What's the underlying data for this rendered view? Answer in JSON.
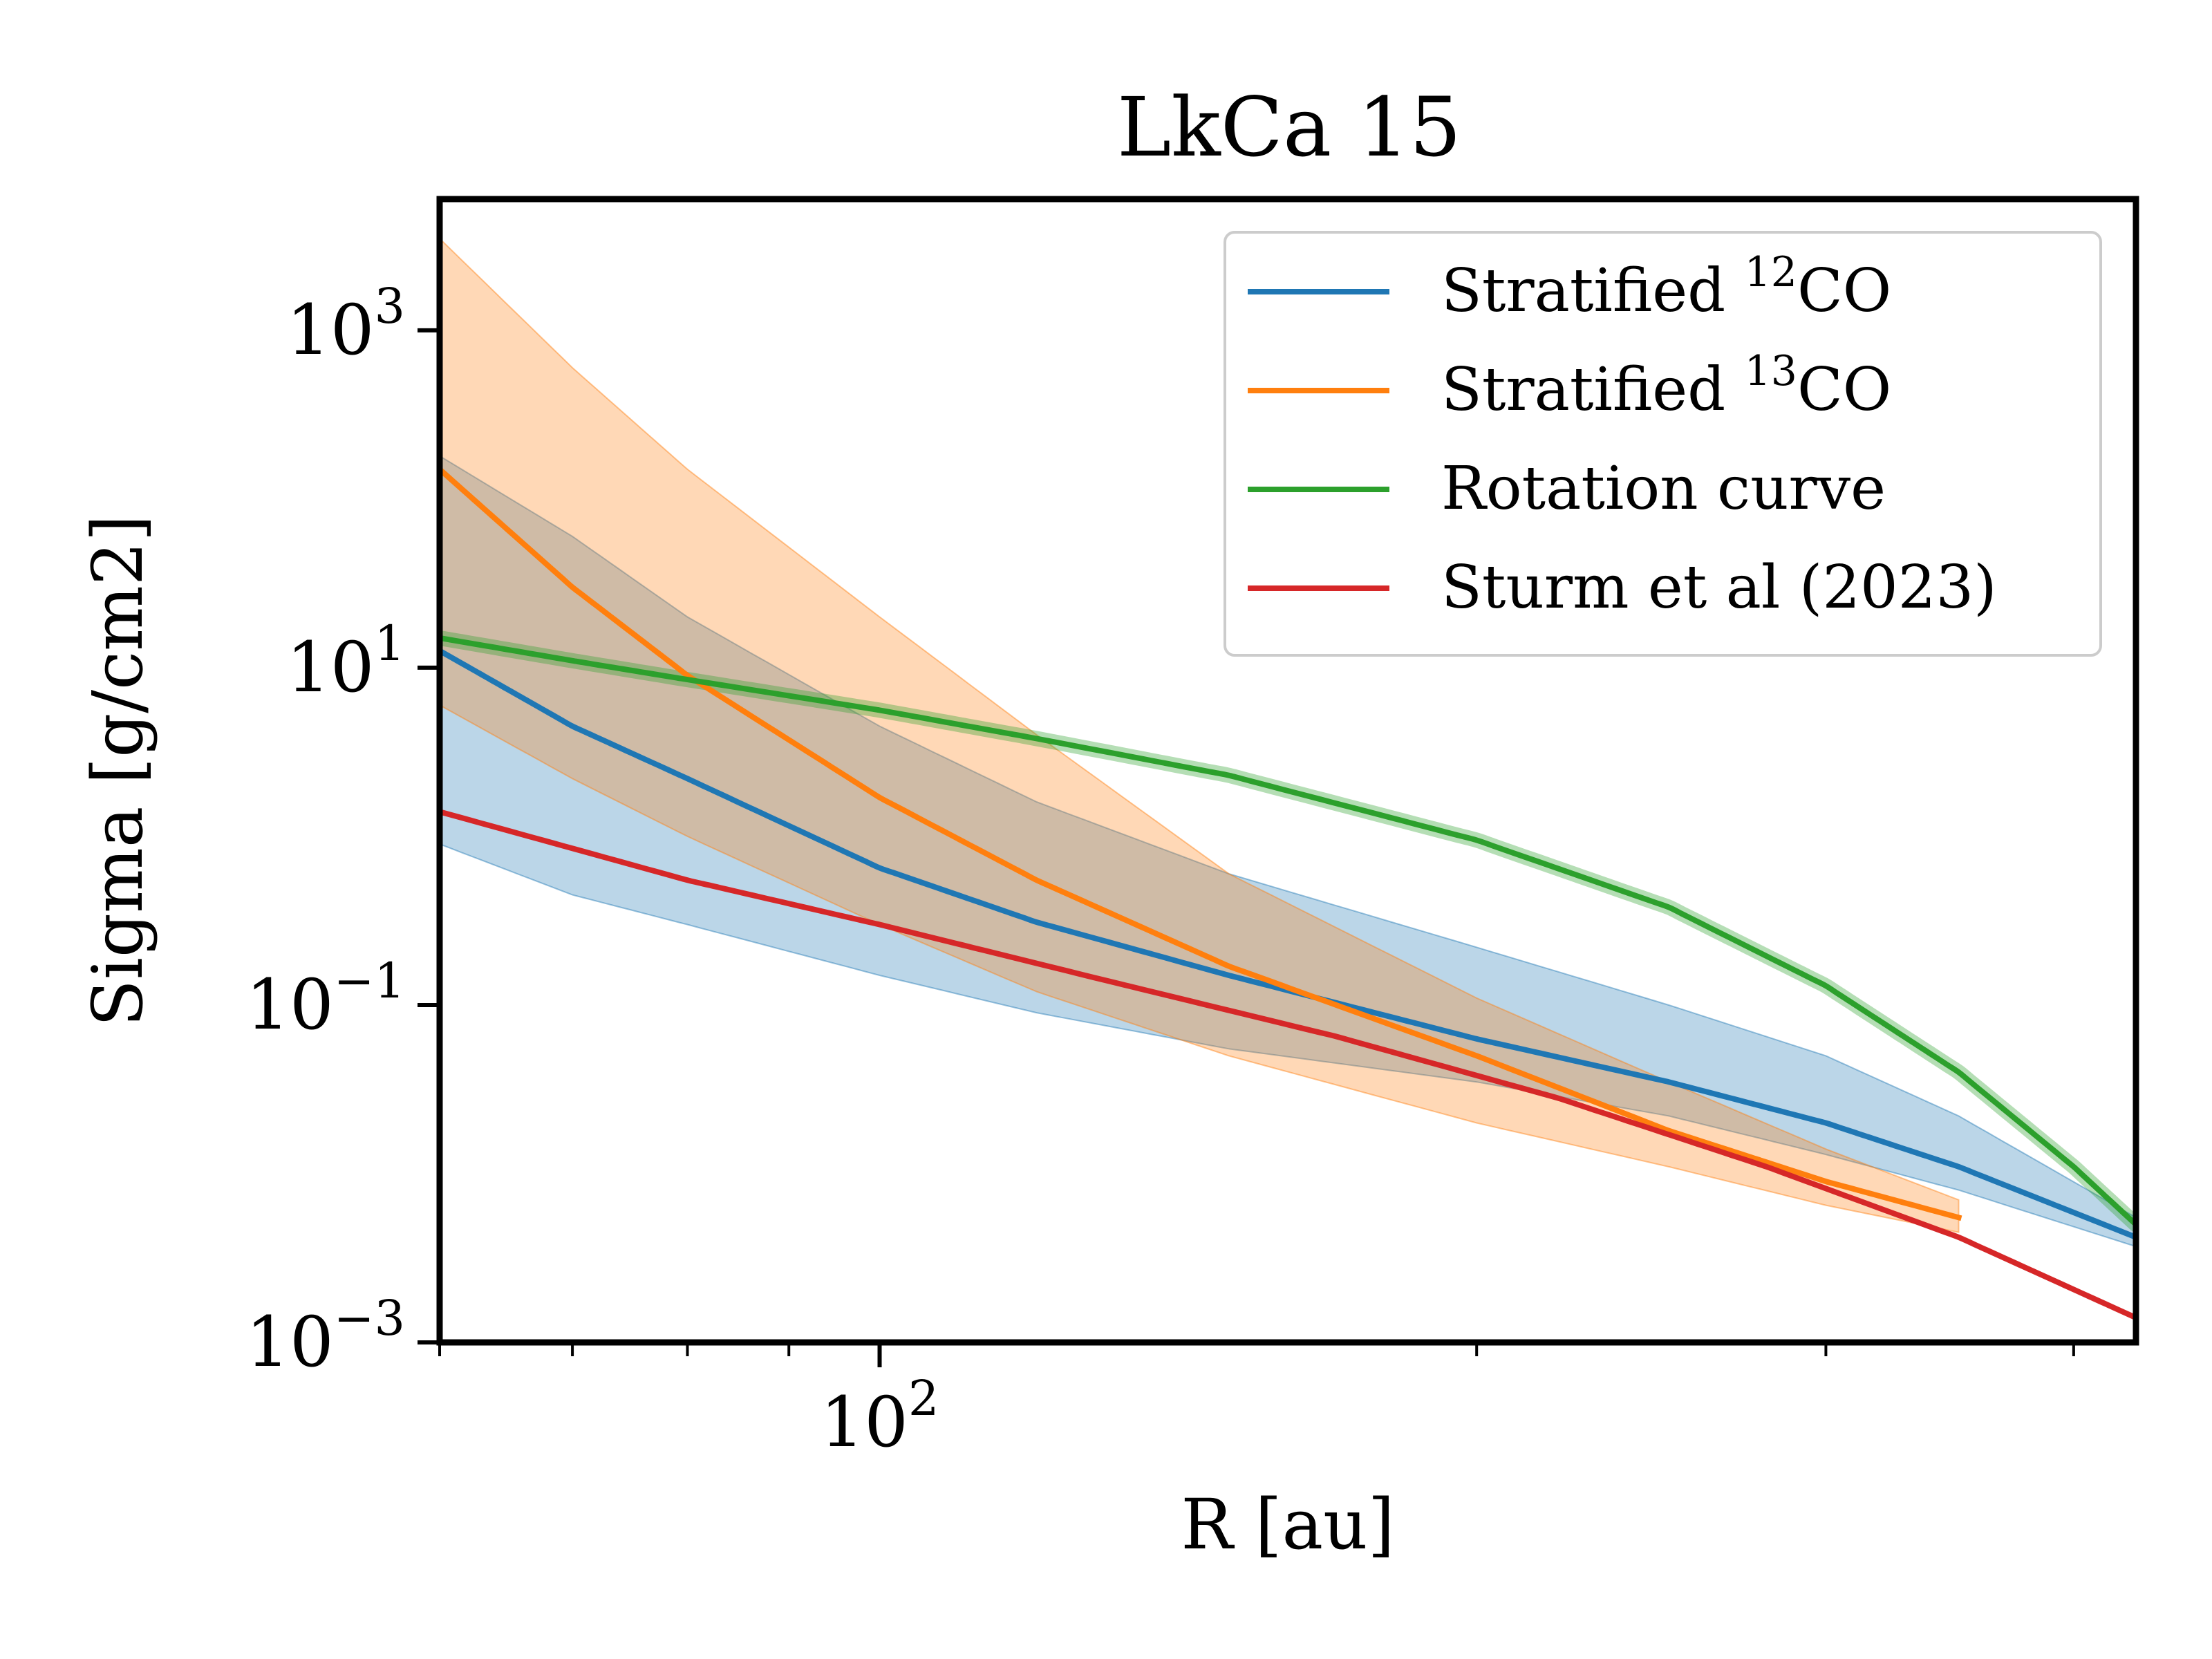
{
  "chart_data": {
    "type": "line",
    "title": "LkCa 15",
    "xlabel": "R [au]",
    "ylabel": "Sigma [g/cm2]",
    "xscale": "log",
    "yscale": "log",
    "xlim": [
      60,
      430
    ],
    "ylim": [
      0.001,
      6000
    ],
    "grid": false,
    "legend_position": "upper right",
    "x_tick_labels": [
      {
        "value": 100,
        "base": "10",
        "exp": "2"
      }
    ],
    "y_tick_labels": [
      {
        "value": 1000,
        "base": "10",
        "exp": "3"
      },
      {
        "value": 10,
        "base": "10",
        "exp": "1"
      },
      {
        "value": 0.1,
        "base": "10",
        "exp": "−1"
      },
      {
        "value": 0.001,
        "base": "10",
        "exp": "−3"
      }
    ],
    "series": [
      {
        "name": "Stratified ¹²CO",
        "legend_text": "Stratified ",
        "legend_sup": "12",
        "legend_suffix": "CO",
        "color": "#1f77b4",
        "x": [
          60,
          70,
          80,
          100,
          120,
          150,
          200,
          250,
          300,
          350,
          430
        ],
        "y": [
          12.6,
          4.5,
          2.2,
          0.65,
          0.31,
          0.15,
          0.063,
          0.035,
          0.02,
          0.011,
          0.0042
        ],
        "band_low": [
          0.9,
          0.45,
          0.3,
          0.15,
          0.09,
          0.055,
          0.035,
          0.022,
          0.013,
          0.008,
          0.0037
        ],
        "band_high": [
          180,
          60,
          20,
          4.5,
          1.6,
          0.6,
          0.22,
          0.1,
          0.05,
          0.022,
          0.0055
        ]
      },
      {
        "name": "Stratified ¹³CO",
        "legend_text": "Stratified ",
        "legend_sup": "13",
        "legend_suffix": "CO",
        "color": "#ff7f0e",
        "x": [
          60,
          70,
          80,
          100,
          120,
          150,
          200,
          250,
          300,
          350
        ],
        "y": [
          150,
          30,
          9,
          1.7,
          0.55,
          0.17,
          0.05,
          0.018,
          0.009,
          0.0055
        ],
        "band_low": [
          6,
          2.2,
          1.0,
          0.3,
          0.12,
          0.05,
          0.02,
          0.011,
          0.0065,
          0.0045
        ],
        "band_high": [
          3500,
          600,
          150,
          20,
          4,
          0.6,
          0.11,
          0.035,
          0.014,
          0.007
        ]
      },
      {
        "name": "Rotation curve",
        "legend_text": "Rotation curve",
        "legend_sup": "",
        "legend_suffix": "",
        "color": "#2ca02c",
        "x": [
          60,
          70,
          80,
          100,
          120,
          150,
          200,
          250,
          300,
          350,
          400,
          430
        ],
        "y": [
          15,
          11,
          8.5,
          5.6,
          3.8,
          2.3,
          0.95,
          0.38,
          0.13,
          0.04,
          0.011,
          0.005
        ]
      },
      {
        "name": "Sturm et al (2023)",
        "legend_text": "Sturm et al (2023)",
        "legend_sup": "",
        "legend_suffix": "",
        "color": "#d62728",
        "x": [
          60,
          80,
          100,
          130,
          170,
          220,
          280,
          350,
          430
        ],
        "y": [
          1.4,
          0.55,
          0.3,
          0.14,
          0.065,
          0.028,
          0.011,
          0.0042,
          0.0014
        ]
      }
    ]
  }
}
